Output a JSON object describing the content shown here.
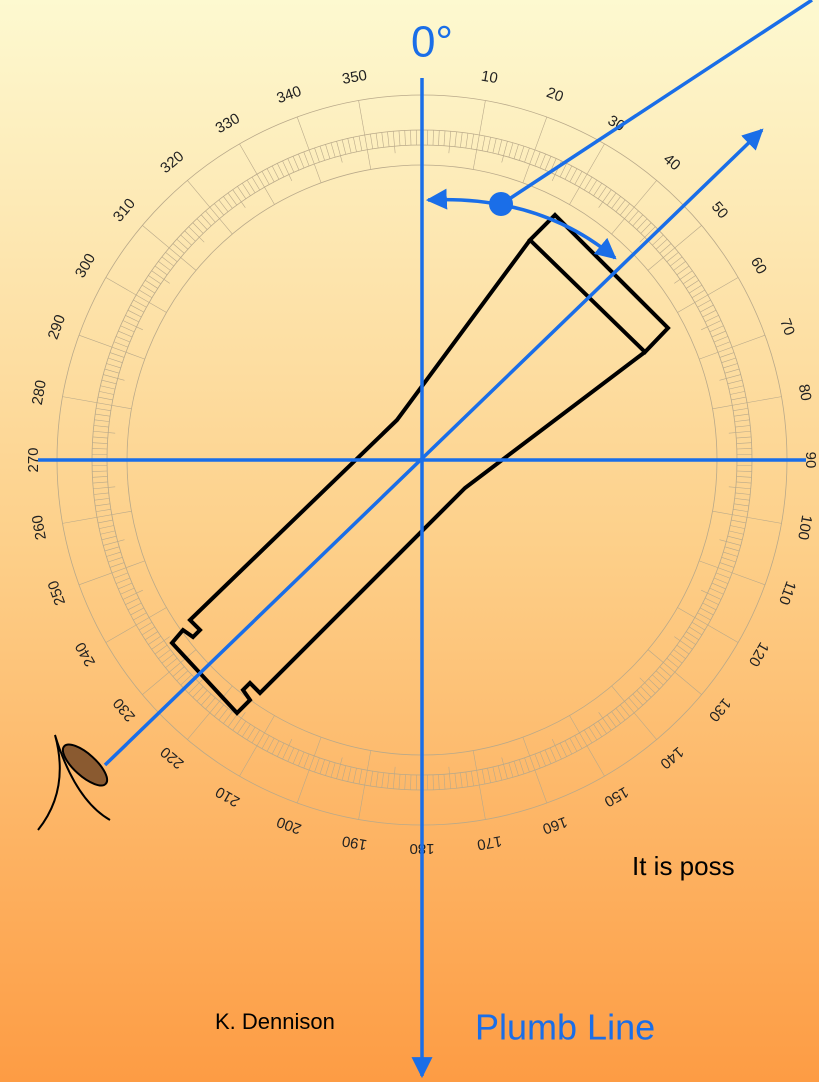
{
  "heading": "0°",
  "dial_labels": [
    "10",
    "20",
    "30",
    "40",
    "50",
    "60",
    "70",
    "80",
    "90",
    "100",
    "110",
    "120",
    "130",
    "140",
    "150",
    "160",
    "170",
    "180",
    "190",
    "200",
    "210",
    "220",
    "230",
    "240",
    "250",
    "260",
    "270",
    "280",
    "290",
    "300",
    "310",
    "320",
    "330",
    "340",
    "350"
  ],
  "caption": "It is poss",
  "author": "K. Dennison",
  "subtitle": "Plumb Line"
}
